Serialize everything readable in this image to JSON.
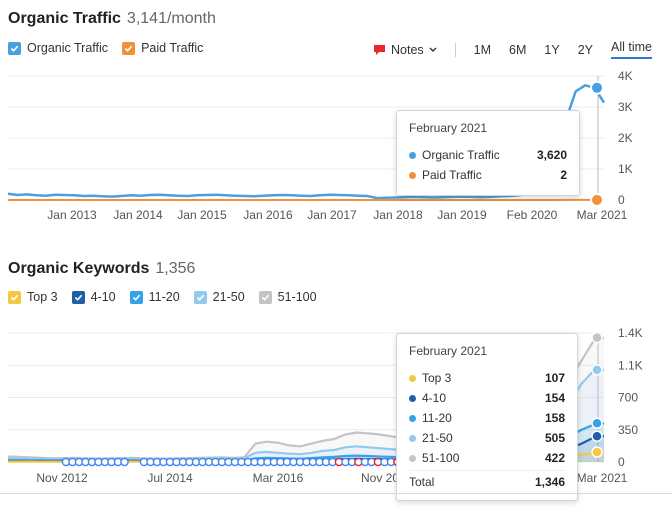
{
  "traffic": {
    "title": "Organic Traffic",
    "subtitle": "3,141/month",
    "legend": [
      {
        "label": "Organic Traffic",
        "color": "#4a9fe0",
        "checked": true
      },
      {
        "label": "Paid Traffic",
        "color": "#f0913a",
        "checked": true
      }
    ],
    "notes_label": "Notes",
    "ranges": [
      "1M",
      "6M",
      "1Y",
      "2Y",
      "All time"
    ],
    "active_range": "All time",
    "tooltip": {
      "title": "February 2021",
      "rows": [
        {
          "label": "Organic Traffic",
          "value": "3,620",
          "color": "#4a9fe0"
        },
        {
          "label": "Paid Traffic",
          "value": "2",
          "color": "#f0913a"
        }
      ]
    }
  },
  "keywords": {
    "title": "Organic Keywords",
    "subtitle": "1,356",
    "legend": [
      {
        "label": "Top 3",
        "color": "#f5c842",
        "checked": true
      },
      {
        "label": "4-10",
        "color": "#1f5fa8",
        "checked": true
      },
      {
        "label": "11-20",
        "color": "#35a2e8",
        "checked": true
      },
      {
        "label": "21-50",
        "color": "#93c8ef",
        "checked": true
      },
      {
        "label": "51-100",
        "color": "#c4c4c4",
        "checked": true
      }
    ],
    "tooltip": {
      "title": "February 2021",
      "rows": [
        {
          "label": "Top 3",
          "value": "107",
          "color": "#f5c842"
        },
        {
          "label": "4-10",
          "value": "154",
          "color": "#1f5fa8"
        },
        {
          "label": "11-20",
          "value": "158",
          "color": "#35a2e8"
        },
        {
          "label": "21-50",
          "value": "505",
          "color": "#93c8ef"
        },
        {
          "label": "51-100",
          "value": "422",
          "color": "#c4c4c4"
        }
      ],
      "total_label": "Total",
      "total_value": "1,346"
    }
  },
  "chart_data": [
    {
      "type": "line",
      "x_ticks": [
        "Jan 2013",
        "Jan 2014",
        "Jan 2015",
        "Jan 2016",
        "Jan 2017",
        "Jan 2018",
        "Jan 2019",
        "Feb 2020",
        "Mar 2021"
      ],
      "y_ticks": [
        "0",
        "1K",
        "2K",
        "3K",
        "4K"
      ],
      "ylim": [
        0,
        4000
      ],
      "series": [
        {
          "name": "Organic Traffic",
          "color": "#4a9fe0",
          "values": [
            200,
            160,
            180,
            150,
            140,
            170,
            160,
            150,
            130,
            140,
            120,
            110,
            130,
            150,
            140,
            160,
            170,
            150,
            140,
            130,
            150,
            160,
            170,
            150,
            140,
            130,
            120,
            140,
            150,
            160,
            150,
            140,
            130,
            150,
            170,
            160,
            150,
            140,
            130,
            60,
            70,
            80,
            90,
            100,
            90,
            80,
            90,
            100,
            110,
            100,
            90,
            100,
            120,
            130,
            150,
            200,
            400,
            800,
            1500,
            2600,
            3500,
            3700,
            3620,
            3141
          ]
        },
        {
          "name": "Paid Traffic",
          "color": "#f0913a",
          "values": [
            0,
            0,
            0,
            0,
            0,
            0,
            0,
            0,
            0,
            0,
            0,
            0,
            0,
            0,
            0,
            0,
            0,
            0,
            0,
            0,
            0,
            0,
            0,
            0,
            0,
            0,
            0,
            0,
            0,
            0,
            0,
            0,
            0,
            0,
            0,
            0,
            0,
            0,
            0,
            0,
            0,
            0,
            0,
            0,
            0,
            0,
            0,
            0,
            0,
            0,
            0,
            0,
            0,
            0,
            0,
            0,
            0,
            0,
            0,
            2,
            2,
            2,
            2,
            2
          ]
        }
      ]
    },
    {
      "type": "area",
      "x_ticks": [
        "Nov 2012",
        "Jul 2014",
        "Mar 2016",
        "Nov 20",
        "Mar 2021"
      ],
      "y_ticks": [
        "0",
        "350",
        "700",
        "1.1K",
        "1.4K"
      ],
      "ylim": [
        0,
        1400
      ],
      "series": [
        {
          "name": "51-100",
          "color": "#c4c4c4",
          "values": [
            60,
            55,
            50,
            45,
            40,
            42,
            45,
            40,
            38,
            40,
            42,
            45,
            40,
            38,
            36,
            40,
            42,
            45,
            48,
            50,
            45,
            50,
            200,
            220,
            210,
            180,
            170,
            200,
            230,
            250,
            300,
            320,
            310,
            300,
            280,
            260,
            230,
            120,
            110,
            130,
            150,
            180,
            210,
            240,
            270,
            300,
            360,
            420,
            500,
            650,
            900,
            1100,
            1300,
            1350
          ]
        },
        {
          "name": "21-50",
          "color": "#93c8ef",
          "values": [
            40,
            38,
            36,
            35,
            32,
            34,
            36,
            32,
            30,
            32,
            34,
            36,
            32,
            30,
            28,
            32,
            34,
            36,
            38,
            40,
            36,
            40,
            100,
            110,
            100,
            90,
            85,
            100,
            120,
            130,
            160,
            170,
            160,
            150,
            140,
            130,
            120,
            70,
            65,
            75,
            90,
            110,
            130,
            150,
            170,
            190,
            230,
            280,
            340,
            450,
            650,
            850,
            980,
            1000
          ]
        },
        {
          "name": "11-20",
          "color": "#35a2e8",
          "values": [
            20,
            19,
            18,
            17,
            16,
            17,
            18,
            16,
            15,
            16,
            17,
            18,
            16,
            15,
            14,
            16,
            17,
            18,
            19,
            20,
            18,
            20,
            40,
            45,
            42,
            38,
            36,
            42,
            50,
            55,
            65,
            70,
            65,
            60,
            56,
            52,
            48,
            30,
            28,
            32,
            38,
            45,
            55,
            65,
            75,
            85,
            100,
            120,
            150,
            200,
            280,
            350,
            400,
            420
          ]
        },
        {
          "name": "4-10",
          "color": "#1f5fa8",
          "values": [
            10,
            10,
            9,
            9,
            8,
            9,
            9,
            8,
            8,
            8,
            9,
            9,
            8,
            8,
            7,
            8,
            9,
            9,
            10,
            10,
            9,
            10,
            20,
            22,
            21,
            19,
            18,
            21,
            25,
            27,
            32,
            35,
            32,
            30,
            28,
            26,
            24,
            15,
            14,
            16,
            19,
            22,
            27,
            32,
            37,
            42,
            50,
            60,
            75,
            100,
            150,
            200,
            260,
            280
          ]
        },
        {
          "name": "Top 3",
          "color": "#f5c842",
          "values": [
            4,
            4,
            4,
            3,
            3,
            3,
            4,
            3,
            3,
            3,
            4,
            4,
            3,
            3,
            3,
            3,
            4,
            4,
            4,
            4,
            4,
            4,
            8,
            9,
            8,
            7,
            7,
            8,
            10,
            11,
            13,
            14,
            13,
            12,
            11,
            10,
            10,
            6,
            6,
            6,
            8,
            9,
            11,
            13,
            15,
            17,
            20,
            25,
            30,
            40,
            60,
            80,
            100,
            107
          ]
        }
      ]
    }
  ]
}
